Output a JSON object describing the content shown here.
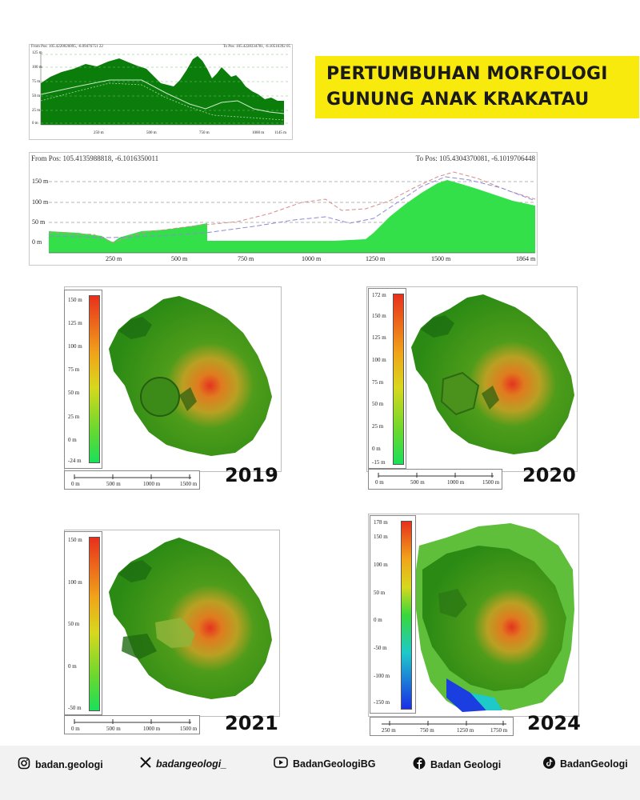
{
  "title": {
    "line1": "PERTUMBUHAN MORFOLOGI",
    "line2": "GUNUNG ANAK KRAKATAU"
  },
  "profile_small": {
    "from_pos": "From Pos: 105.4220026095, -6.09476751 22",
    "to_pos": "To Pos: 105.4228334781, -6.10516392 05",
    "y_ticks": [
      "125 m",
      "100 m",
      "75 m",
      "50 m",
      "25 m",
      "0 m"
    ],
    "x_ticks": [
      "250 m",
      "500 m",
      "750 m",
      "1000 m",
      "1145 m"
    ]
  },
  "profile_large": {
    "from_pos": "From Pos: 105.4135988818, -6.1016350011",
    "to_pos": "To Pos: 105.4304370081, -6.1019706448",
    "y_ticks": [
      "150 m",
      "100 m",
      "50 m",
      "0 m"
    ],
    "x_ticks": [
      "250 m",
      "500 m",
      "750 m",
      "1000 m",
      "1250 m",
      "1500 m",
      "1864 m"
    ]
  },
  "panels": [
    {
      "year": "2019",
      "legend_ticks": [
        "150 m",
        "125 m",
        "100 m",
        "75 m",
        "50 m",
        "25 m",
        "0 m",
        "-24 m"
      ],
      "scale_ticks": [
        "0 m",
        "500 m",
        "1000 m",
        "1500 m"
      ]
    },
    {
      "year": "2020",
      "legend_ticks": [
        "172 m",
        "150 m",
        "125 m",
        "100 m",
        "75 m",
        "50 m",
        "25 m",
        "0 m",
        "-15 m"
      ],
      "scale_ticks": [
        "0 m",
        "500 m",
        "1000 m",
        "1500 m"
      ]
    },
    {
      "year": "2021",
      "legend_ticks": [
        "150 m",
        "100 m",
        "50 m",
        "0 m",
        "-50 m"
      ],
      "scale_ticks": [
        "0 m",
        "500 m",
        "1000 m",
        "1500 m"
      ]
    },
    {
      "year": "2024",
      "legend_ticks": [
        "178 m",
        "150 m",
        "100 m",
        "50 m",
        "0 m",
        "-50 m",
        "-100 m",
        "-150 m"
      ],
      "scale_ticks": [
        "250 m",
        "750 m",
        "1250 m",
        "1750 m"
      ]
    }
  ],
  "footer": {
    "instagram": "badan.geologi",
    "x": "badangeologi_",
    "youtube": "BadanGeologiBG",
    "facebook": "Badan Geologi",
    "tiktok": "BadanGeologi"
  },
  "icons": [
    "instagram-icon",
    "x-icon",
    "youtube-icon",
    "facebook-icon",
    "tiktok-icon"
  ],
  "colors": {
    "banner": "#f7ea0c",
    "terrain_dark": "#0a7d0a",
    "terrain_bright": "#33e04a"
  }
}
